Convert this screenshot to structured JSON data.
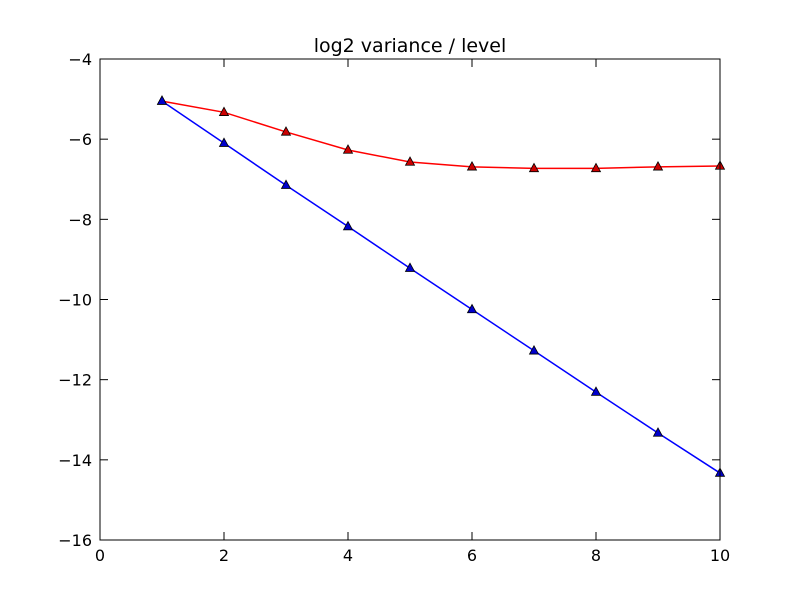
{
  "chart_data": {
    "type": "line",
    "title": "log2 variance / level",
    "xlabel": "",
    "ylabel": "",
    "xlim": [
      0,
      10
    ],
    "ylim": [
      -16,
      -4
    ],
    "x_ticks": [
      0,
      2,
      4,
      6,
      8,
      10
    ],
    "y_ticks": [
      -16,
      -14,
      -12,
      -10,
      -8,
      -6,
      -4
    ],
    "x_tick_labels": [
      "0",
      "2",
      "4",
      "6",
      "8",
      "10"
    ],
    "y_tick_labels": [
      "−16",
      "−14",
      "−12",
      "−10",
      "−8",
      "−6",
      "−4"
    ],
    "grid": false,
    "legend": "none",
    "marker": "triangle",
    "x": [
      1,
      2,
      3,
      4,
      5,
      6,
      7,
      8,
      9,
      10
    ],
    "series": [
      {
        "values": [
          -5.05,
          -5.33,
          -5.82,
          -6.27,
          -6.57,
          -6.69,
          -6.73,
          -6.73,
          -6.69,
          -6.67
        ],
        "color": "#ff0000",
        "marker_fill": "#cc0000"
      },
      {
        "values": [
          -5.05,
          -6.1,
          -7.15,
          -8.18,
          -9.22,
          -10.25,
          -11.28,
          -12.31,
          -13.33,
          -14.33
        ],
        "color": "#0000ff",
        "marker_fill": "#0000cc"
      }
    ]
  }
}
